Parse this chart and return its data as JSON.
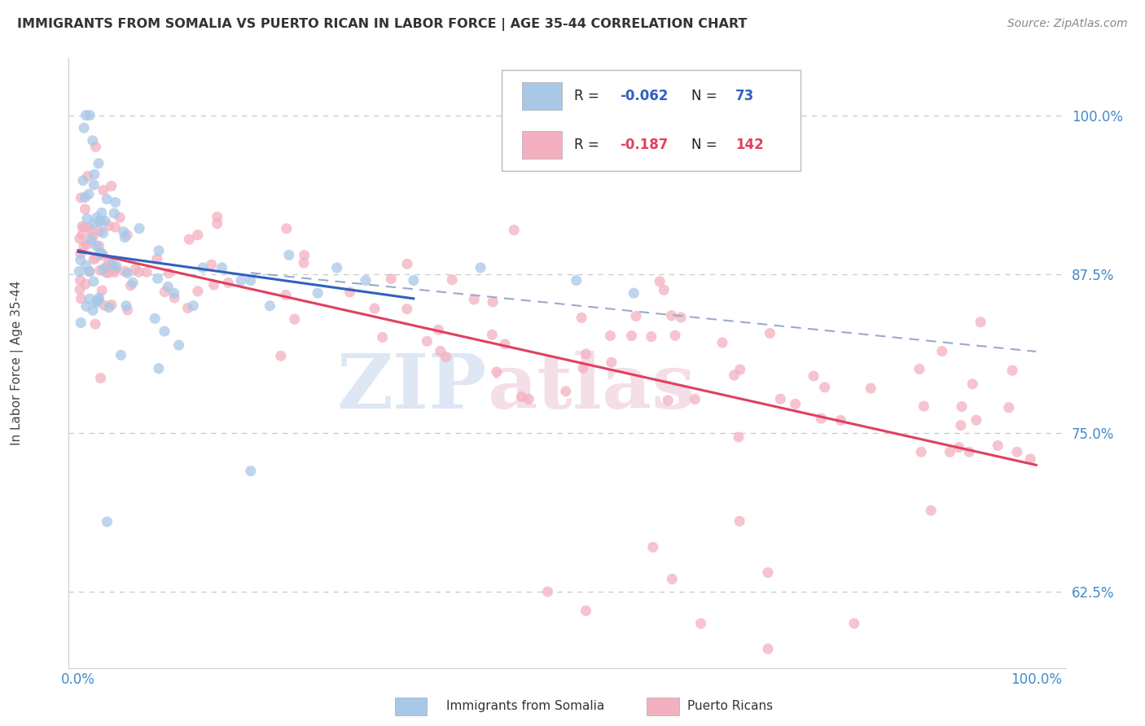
{
  "title": "IMMIGRANTS FROM SOMALIA VS PUERTO RICAN IN LABOR FORCE | AGE 35-44 CORRELATION CHART",
  "source": "Source: ZipAtlas.com",
  "ylabel": "In Labor Force | Age 35-44",
  "legend_bottom": [
    "Immigrants from Somalia",
    "Puerto Ricans"
  ],
  "R_somalia": -0.062,
  "N_somalia": 73,
  "R_puerto": -0.187,
  "N_puerto": 142,
  "color_somalia": "#a8c8e8",
  "color_puerto": "#f4b0c0",
  "line_color_somalia": "#3060c0",
  "line_color_puerto": "#e04060",
  "dash_color": "#99aacc",
  "background": "#ffffff",
  "grid_color": "#c8c8c8",
  "watermark_zip": "ZIP",
  "watermark_atlas": "atlas",
  "ytick_labels": [
    "62.5%",
    "75.0%",
    "87.5%",
    "100.0%"
  ],
  "ytick_vals": [
    0.625,
    0.75,
    0.875,
    1.0
  ],
  "xtick_labels": [
    "0.0%",
    "100.0%"
  ],
  "xtick_vals": [
    0.0,
    1.0
  ],
  "tick_color": "#4488cc",
  "ylim_lo": 0.565,
  "ylim_hi": 1.045,
  "xlim_lo": -0.01,
  "xlim_hi": 1.03
}
